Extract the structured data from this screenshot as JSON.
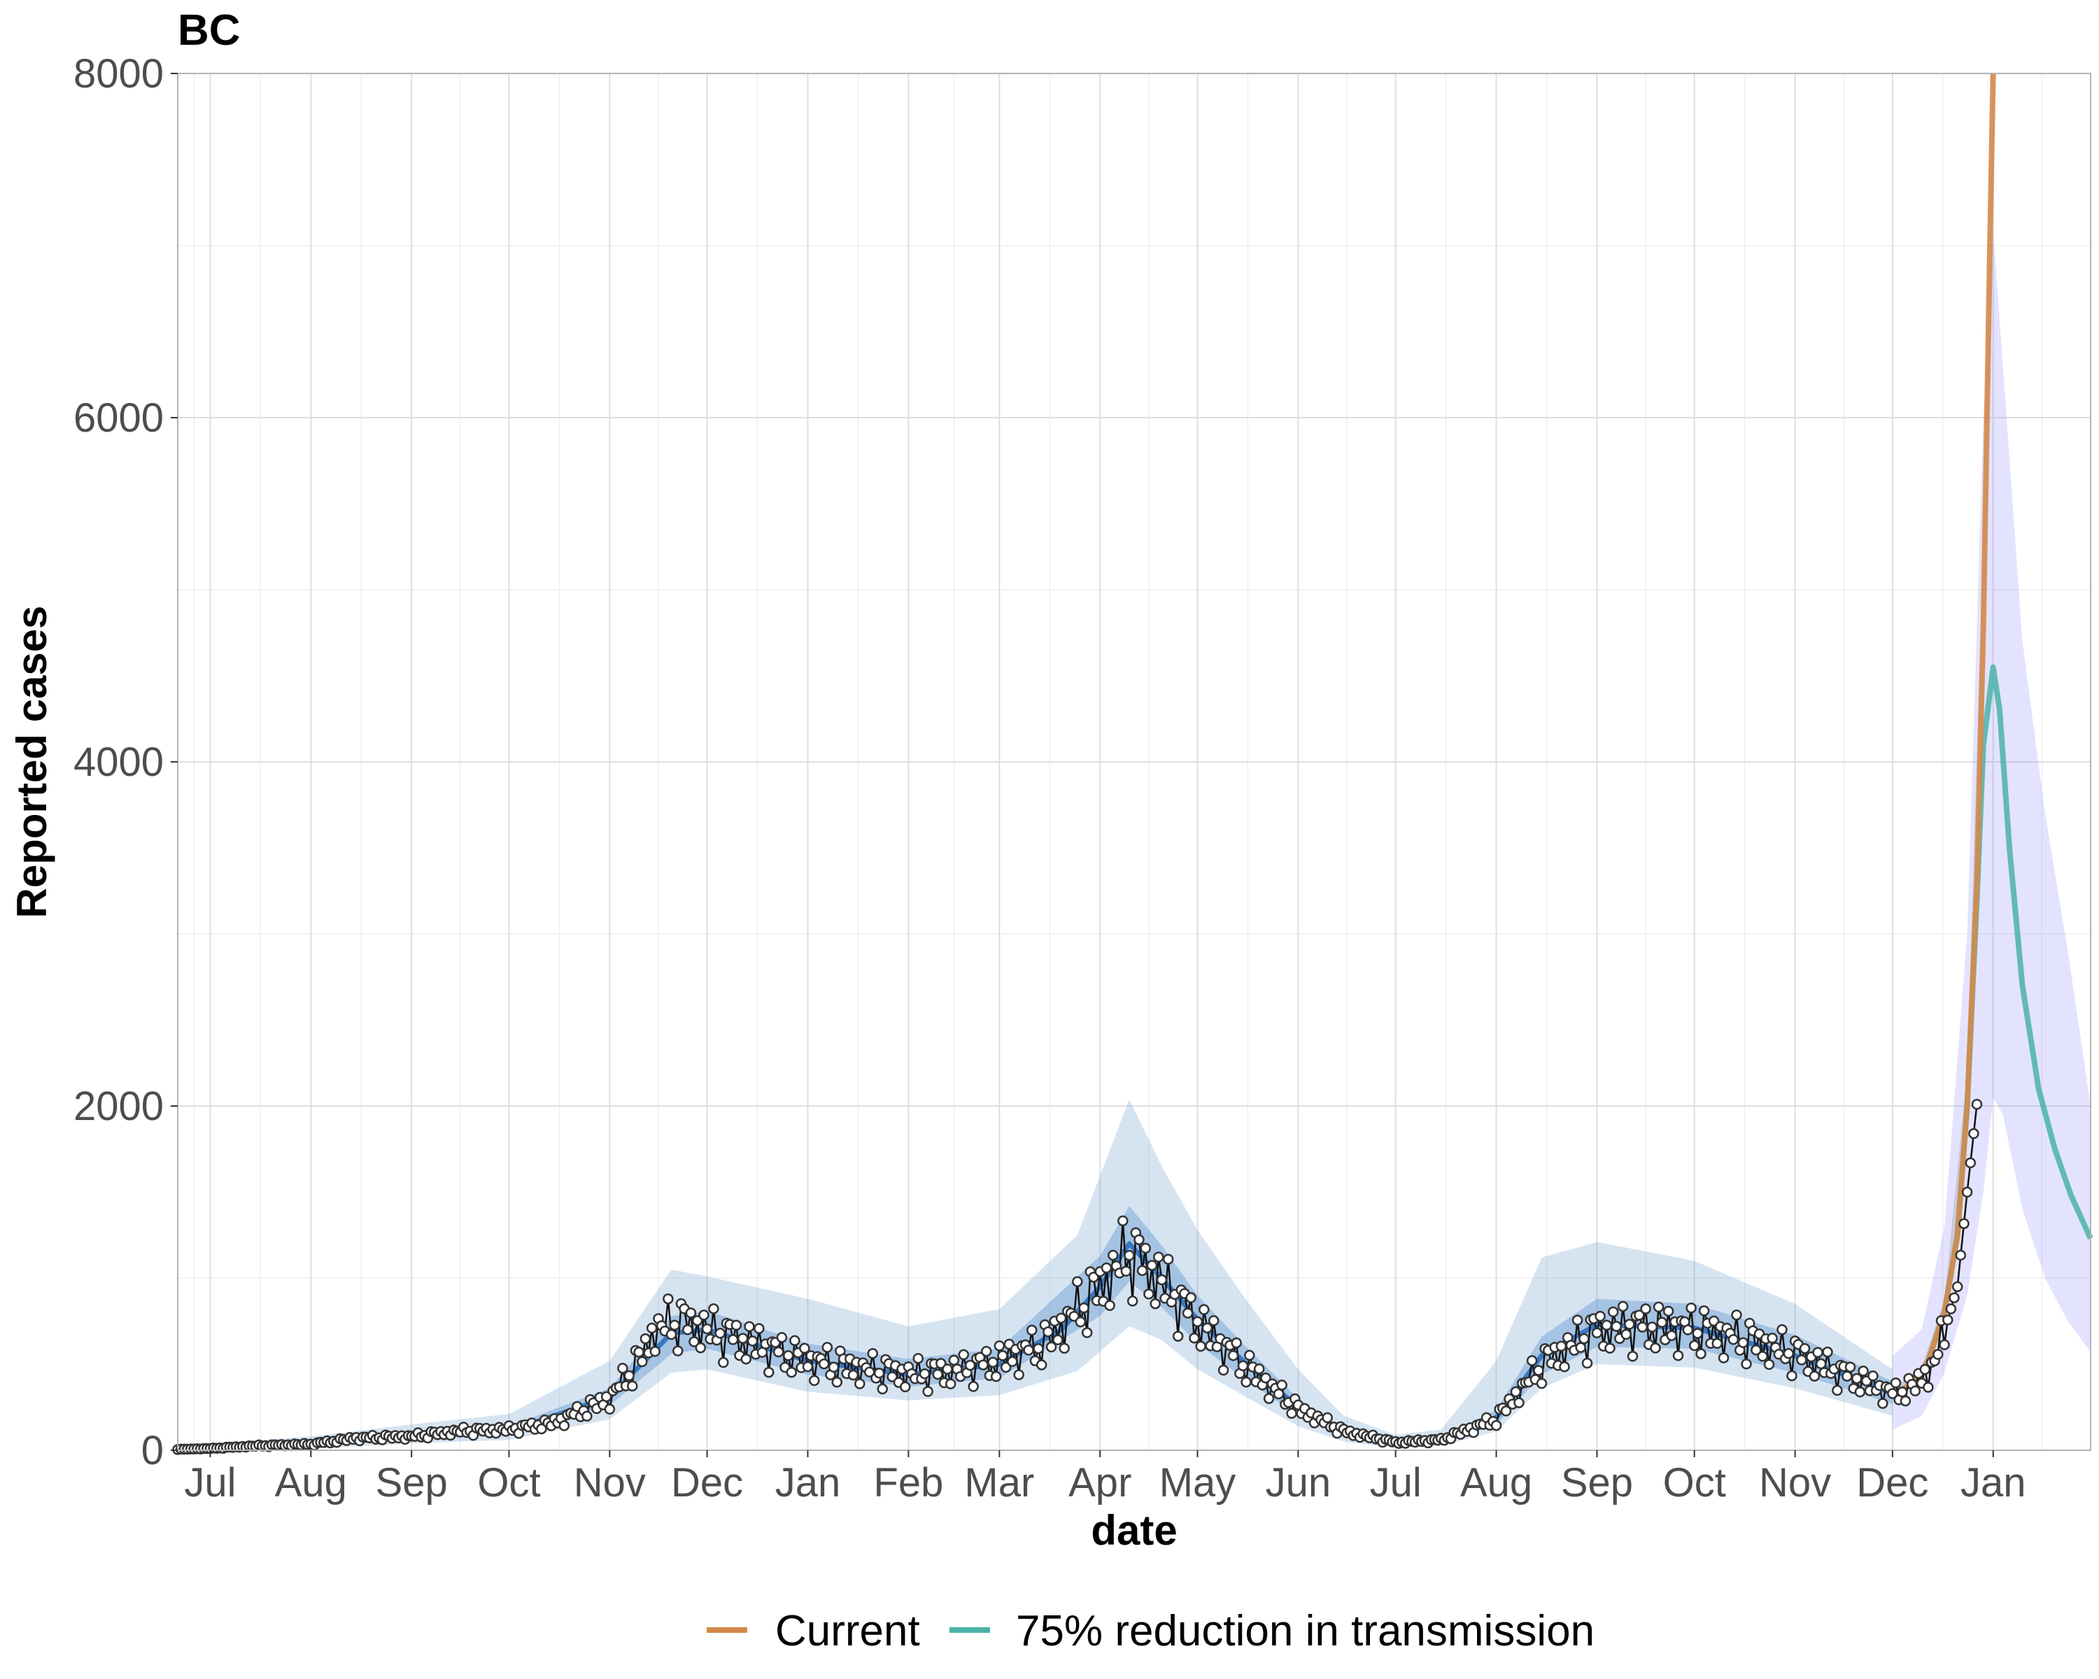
{
  "chart_data": {
    "type": "line",
    "title": "BC",
    "xlabel": "date",
    "ylabel": "Reported cases",
    "ylim": [
      0,
      8000
    ],
    "yticks": [
      0,
      2000,
      4000,
      6000,
      8000
    ],
    "xlim": [
      "2020-06-21",
      "2022-01-31"
    ],
    "xticks": [
      {
        "date": "2020-07-01",
        "label": "Jul"
      },
      {
        "date": "2020-08-01",
        "label": "Aug"
      },
      {
        "date": "2020-09-01",
        "label": "Sep"
      },
      {
        "date": "2020-10-01",
        "label": "Oct"
      },
      {
        "date": "2020-11-01",
        "label": "Nov"
      },
      {
        "date": "2020-12-01",
        "label": "Dec"
      },
      {
        "date": "2021-01-01",
        "label": "Jan"
      },
      {
        "date": "2021-02-01",
        "label": "Feb"
      },
      {
        "date": "2021-03-01",
        "label": "Mar"
      },
      {
        "date": "2021-04-01",
        "label": "Apr"
      },
      {
        "date": "2021-05-01",
        "label": "May"
      },
      {
        "date": "2021-06-01",
        "label": "Jun"
      },
      {
        "date": "2021-07-01",
        "label": "Jul"
      },
      {
        "date": "2021-08-01",
        "label": "Aug"
      },
      {
        "date": "2021-09-01",
        "label": "Sep"
      },
      {
        "date": "2021-10-01",
        "label": "Oct"
      },
      {
        "date": "2021-11-01",
        "label": "Nov"
      },
      {
        "date": "2021-12-01",
        "label": "Dec"
      },
      {
        "date": "2022-01-01",
        "label": "Jan"
      }
    ],
    "grid": true,
    "legend_position": "bottom",
    "observed_cases": [
      [
        "2020-06-21",
        5
      ],
      [
        "2020-07-01",
        10
      ],
      [
        "2020-07-15",
        25
      ],
      [
        "2020-08-01",
        35
      ],
      [
        "2020-08-15",
        70
      ],
      [
        "2020-09-01",
        80
      ],
      [
        "2020-09-15",
        110
      ],
      [
        "2020-10-01",
        120
      ],
      [
        "2020-10-15",
        160
      ],
      [
        "2020-11-01",
        300
      ],
      [
        "2020-11-10",
        520
      ],
      [
        "2020-11-15",
        700
      ],
      [
        "2020-11-22",
        750
      ],
      [
        "2020-12-01",
        700
      ],
      [
        "2020-12-15",
        620
      ],
      [
        "2021-01-01",
        520
      ],
      [
        "2021-01-15",
        480
      ],
      [
        "2021-02-01",
        440
      ],
      [
        "2021-02-15",
        460
      ],
      [
        "2021-03-01",
        520
      ],
      [
        "2021-03-15",
        620
      ],
      [
        "2021-04-01",
        950
      ],
      [
        "2021-04-10",
        1150
      ],
      [
        "2021-04-20",
        980
      ],
      [
        "2021-05-01",
        740
      ],
      [
        "2021-05-15",
        500
      ],
      [
        "2021-06-01",
        240
      ],
      [
        "2021-06-15",
        110
      ],
      [
        "2021-07-01",
        45
      ],
      [
        "2021-07-15",
        60
      ],
      [
        "2021-08-01",
        180
      ],
      [
        "2021-08-15",
        500
      ],
      [
        "2021-09-01",
        700
      ],
      [
        "2021-09-15",
        720
      ],
      [
        "2021-10-01",
        700
      ],
      [
        "2021-10-15",
        650
      ],
      [
        "2021-11-01",
        560
      ],
      [
        "2021-11-15",
        450
      ],
      [
        "2021-12-01",
        330
      ],
      [
        "2021-12-07",
        360
      ],
      [
        "2021-12-14",
        500
      ],
      [
        "2021-12-21",
        950
      ],
      [
        "2021-12-24",
        1500
      ],
      [
        "2021-12-27",
        2010
      ]
    ],
    "fitted_median": [
      [
        "2020-06-21",
        5
      ],
      [
        "2020-08-01",
        35
      ],
      [
        "2020-09-01",
        80
      ],
      [
        "2020-10-01",
        110
      ],
      [
        "2020-11-01",
        310
      ],
      [
        "2020-11-20",
        680
      ],
      [
        "2020-12-01",
        700
      ],
      [
        "2021-01-01",
        520
      ],
      [
        "2021-02-01",
        440
      ],
      [
        "2021-03-01",
        500
      ],
      [
        "2021-03-20",
        700
      ],
      [
        "2021-04-01",
        950
      ],
      [
        "2021-04-10",
        1200
      ],
      [
        "2021-04-20",
        1000
      ],
      [
        "2021-05-01",
        760
      ],
      [
        "2021-05-15",
        520
      ],
      [
        "2021-06-01",
        250
      ],
      [
        "2021-06-15",
        100
      ],
      [
        "2021-07-01",
        40
      ],
      [
        "2021-07-15",
        55
      ],
      [
        "2021-08-01",
        190
      ],
      [
        "2021-08-15",
        550
      ],
      [
        "2021-09-01",
        730
      ],
      [
        "2021-10-01",
        710
      ],
      [
        "2021-11-01",
        550
      ],
      [
        "2021-12-01",
        330
      ]
    ],
    "fitted_inner_band": [
      [
        "2020-06-21",
        0,
        15
      ],
      [
        "2020-08-01",
        20,
        50
      ],
      [
        "2020-09-01",
        60,
        100
      ],
      [
        "2020-10-01",
        90,
        140
      ],
      [
        "2020-11-01",
        260,
        360
      ],
      [
        "2020-11-20",
        560,
        780
      ],
      [
        "2020-12-01",
        590,
        810
      ],
      [
        "2021-01-01",
        440,
        620
      ],
      [
        "2021-02-01",
        370,
        530
      ],
      [
        "2021-03-01",
        420,
        590
      ],
      [
        "2021-04-01",
        780,
        1130
      ],
      [
        "2021-04-10",
        980,
        1420
      ],
      [
        "2021-04-20",
        830,
        1190
      ],
      [
        "2021-05-01",
        620,
        900
      ],
      [
        "2021-05-15",
        420,
        620
      ],
      [
        "2021-06-01",
        200,
        300
      ],
      [
        "2021-06-15",
        80,
        125
      ],
      [
        "2021-07-01",
        30,
        55
      ],
      [
        "2021-07-15",
        40,
        70
      ],
      [
        "2021-08-01",
        150,
        235
      ],
      [
        "2021-08-15",
        440,
        660
      ],
      [
        "2021-09-01",
        600,
        880
      ],
      [
        "2021-10-01",
        590,
        850
      ],
      [
        "2021-11-01",
        450,
        670
      ],
      [
        "2021-12-01",
        270,
        400
      ]
    ],
    "fitted_outer_band": [
      [
        "2020-06-21",
        0,
        25
      ],
      [
        "2020-08-01",
        10,
        80
      ],
      [
        "2020-09-01",
        40,
        150
      ],
      [
        "2020-10-01",
        60,
        210
      ],
      [
        "2020-11-01",
        180,
        520
      ],
      [
        "2020-11-20",
        450,
        1050
      ],
      [
        "2020-12-01",
        470,
        1010
      ],
      [
        "2021-01-01",
        340,
        880
      ],
      [
        "2021-02-01",
        290,
        720
      ],
      [
        "2021-03-01",
        320,
        820
      ],
      [
        "2021-03-25",
        460,
        1250
      ],
      [
        "2021-04-10",
        720,
        2040
      ],
      [
        "2021-04-20",
        640,
        1650
      ],
      [
        "2021-05-01",
        470,
        1280
      ],
      [
        "2021-05-15",
        320,
        900
      ],
      [
        "2021-06-01",
        140,
        470
      ],
      [
        "2021-06-15",
        50,
        200
      ],
      [
        "2021-07-01",
        15,
        90
      ],
      [
        "2021-07-15",
        25,
        120
      ],
      [
        "2021-08-01",
        110,
        520
      ],
      [
        "2021-08-15",
        360,
        1120
      ],
      [
        "2021-09-01",
        500,
        1210
      ],
      [
        "2021-10-01",
        480,
        1100
      ],
      [
        "2021-11-01",
        360,
        850
      ],
      [
        "2021-12-01",
        200,
        470
      ]
    ],
    "series": [
      {
        "name": "Current",
        "color": "#d4894a",
        "values": [
          [
            "2021-12-01",
            330
          ],
          [
            "2021-12-07",
            380
          ],
          [
            "2021-12-12",
            520
          ],
          [
            "2021-12-17",
            800
          ],
          [
            "2021-12-21",
            1250
          ],
          [
            "2021-12-24",
            2000
          ],
          [
            "2021-12-27",
            3300
          ],
          [
            "2021-12-29",
            4800
          ],
          [
            "2021-12-31",
            7000
          ],
          [
            "2022-01-01",
            8500
          ]
        ],
        "band": [
          [
            "2021-12-01",
            300,
            360
          ],
          [
            "2021-12-10",
            420,
            480
          ],
          [
            "2021-12-17",
            720,
            880
          ],
          [
            "2021-12-24",
            1800,
            2200
          ],
          [
            "2021-12-29",
            4300,
            5300
          ],
          [
            "2022-01-01",
            7500,
            9500
          ]
        ]
      },
      {
        "name": "75% reduction in transmission",
        "color": "#4ab3a6",
        "values": [
          [
            "2021-12-01",
            330
          ],
          [
            "2021-12-07",
            380
          ],
          [
            "2021-12-12",
            520
          ],
          [
            "2021-12-17",
            800
          ],
          [
            "2021-12-21",
            1250
          ],
          [
            "2021-12-24",
            2000
          ],
          [
            "2021-12-27",
            3200
          ],
          [
            "2021-12-29",
            4100
          ],
          [
            "2022-01-01",
            4550
          ],
          [
            "2022-01-03",
            4300
          ],
          [
            "2022-01-06",
            3500
          ],
          [
            "2022-01-10",
            2700
          ],
          [
            "2022-01-15",
            2100
          ],
          [
            "2022-01-20",
            1750
          ],
          [
            "2022-01-25",
            1480
          ],
          [
            "2022-01-31",
            1230
          ]
        ],
        "band": [
          [
            "2021-12-01",
            120,
            550
          ],
          [
            "2021-12-10",
            200,
            700
          ],
          [
            "2021-12-17",
            450,
            1300
          ],
          [
            "2021-12-24",
            900,
            3000
          ],
          [
            "2021-12-29",
            1500,
            6000
          ],
          [
            "2022-01-01",
            2050,
            7100
          ],
          [
            "2022-01-04",
            1950,
            6300
          ],
          [
            "2022-01-10",
            1400,
            4700
          ],
          [
            "2022-01-17",
            1000,
            3700
          ],
          [
            "2022-01-24",
            750,
            2900
          ],
          [
            "2022-01-31",
            570,
            2000
          ]
        ]
      }
    ]
  }
}
